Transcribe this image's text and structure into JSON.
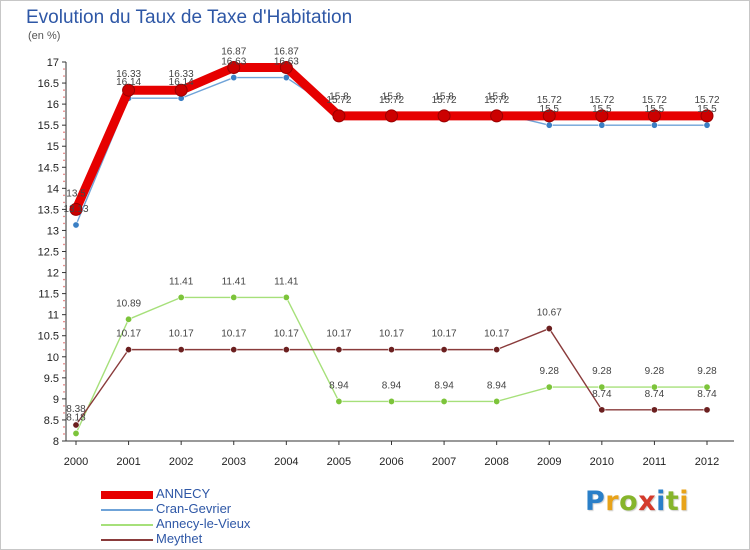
{
  "header": {
    "title": "Evolution du Taux de Taxe d'Habitation",
    "unit": "(en %)"
  },
  "logo": {
    "letters": [
      "P",
      "r",
      "o",
      "x",
      "i",
      "t",
      "i"
    ],
    "colors": [
      "#2a7fc8",
      "#e8a319",
      "#86b52b",
      "#d43a2b",
      "#2a7fc8",
      "#86b52b",
      "#e8a319"
    ]
  },
  "chart_data": {
    "type": "line",
    "title": "Evolution du Taux de Taxe d'Habitation",
    "ylabel": "(en %)",
    "xlabel": "",
    "x": [
      "2000",
      "2001",
      "2002",
      "2003",
      "2004",
      "2005",
      "2006",
      "2007",
      "2008",
      "2009",
      "2010",
      "2011",
      "2012"
    ],
    "ylim": [
      8,
      17
    ],
    "yticks": [
      "8",
      "8.5",
      "9",
      "9.5",
      "10",
      "10.5",
      "11",
      "11.5",
      "12",
      "12.5",
      "13",
      "13.5",
      "14",
      "14.5",
      "15",
      "15.5",
      "16",
      "16.5",
      "17"
    ],
    "grid": false,
    "legend_position": "bottom-left",
    "series": [
      {
        "name": "ANNECY",
        "color": "#e60000",
        "marker": "#cc0000",
        "values": [
          13.5,
          16.33,
          16.33,
          16.87,
          16.87,
          15.72,
          15.72,
          15.72,
          15.72,
          15.72,
          15.72,
          15.72,
          15.72
        ],
        "labels": [
          "13.5",
          "16.33",
          "16.33",
          "16.87",
          "16.87",
          "15.72",
          "15.72",
          "15.72",
          "15.72",
          "15.72",
          "15.72",
          "15.72",
          "15.72"
        ]
      },
      {
        "name": "Cran-Gevrier",
        "color": "#6fa3d8",
        "marker": "#3a7fc4",
        "values": [
          13.13,
          16.14,
          16.14,
          16.63,
          16.63,
          15.8,
          15.8,
          15.8,
          15.8,
          15.5,
          15.5,
          15.5,
          15.5
        ],
        "labels": [
          "13.13",
          "16.14",
          "16.14",
          "16.63",
          "16.63",
          "15.8",
          "15.8",
          "15.8",
          "15.8",
          "15.5",
          "15.5",
          "15.5",
          "15.5"
        ]
      },
      {
        "name": "Annecy-le-Vieux",
        "color": "#a6e07a",
        "marker": "#7cc43a",
        "values": [
          8.18,
          10.89,
          11.41,
          11.41,
          11.41,
          8.94,
          8.94,
          8.94,
          8.94,
          9.28,
          9.28,
          9.28,
          9.28
        ],
        "labels": [
          "8.18",
          "10.89",
          "11.41",
          "11.41",
          "11.41",
          "8.94",
          "8.94",
          "8.94",
          "8.94",
          "9.28",
          "9.28",
          "9.28",
          "9.28"
        ]
      },
      {
        "name": "Meythet",
        "color": "#8a3b3b",
        "marker": "#6b1f1f",
        "values": [
          8.38,
          10.17,
          10.17,
          10.17,
          10.17,
          10.17,
          10.17,
          10.17,
          10.17,
          10.67,
          8.74,
          8.74,
          8.74
        ],
        "labels": [
          "8.38",
          "10.17",
          "10.17",
          "10.17",
          "10.17",
          "10.17",
          "10.17",
          "10.17",
          "10.17",
          "10.67",
          "8.74",
          "8.74",
          "8.74"
        ]
      }
    ]
  }
}
